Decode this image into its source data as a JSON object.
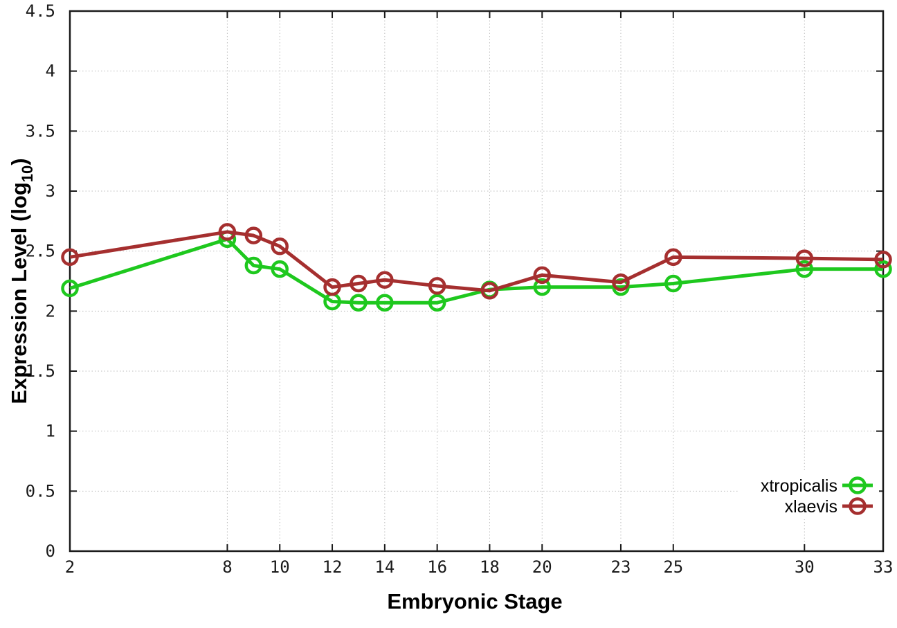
{
  "chart_data": {
    "type": "line",
    "title": "",
    "xlabel": "Embryonic Stage",
    "ylabel": "Expression Level (log10)",
    "ylabel_parts": {
      "main": "Expression Level (log",
      "sub": "10",
      "end": ")"
    },
    "x": [
      2,
      8,
      9,
      10,
      12,
      13,
      14,
      16,
      18,
      20,
      23,
      25,
      30,
      33
    ],
    "xticks": [
      2,
      8,
      10,
      12,
      14,
      16,
      18,
      20,
      23,
      25,
      30,
      33
    ],
    "yticks": [
      0,
      0.5,
      1,
      1.5,
      2,
      2.5,
      3,
      3.5,
      4,
      4.5
    ],
    "xlim": [
      2,
      33
    ],
    "ylim": [
      0,
      4.5
    ],
    "grid": true,
    "legend_position": "bottom-right-inside",
    "series": [
      {
        "name": "xtropicalis",
        "color": "#1ec81e",
        "marker": "open-circle",
        "values": [
          2.19,
          2.6,
          2.38,
          2.35,
          2.08,
          2.07,
          2.07,
          2.07,
          2.18,
          2.2,
          2.2,
          2.23,
          2.35,
          2.35
        ]
      },
      {
        "name": "xlaevis",
        "color": "#a52f2f",
        "marker": "open-circle",
        "values": [
          2.45,
          2.66,
          2.63,
          2.54,
          2.2,
          2.23,
          2.26,
          2.21,
          2.17,
          2.3,
          2.24,
          2.45,
          2.44,
          2.43
        ]
      }
    ]
  }
}
